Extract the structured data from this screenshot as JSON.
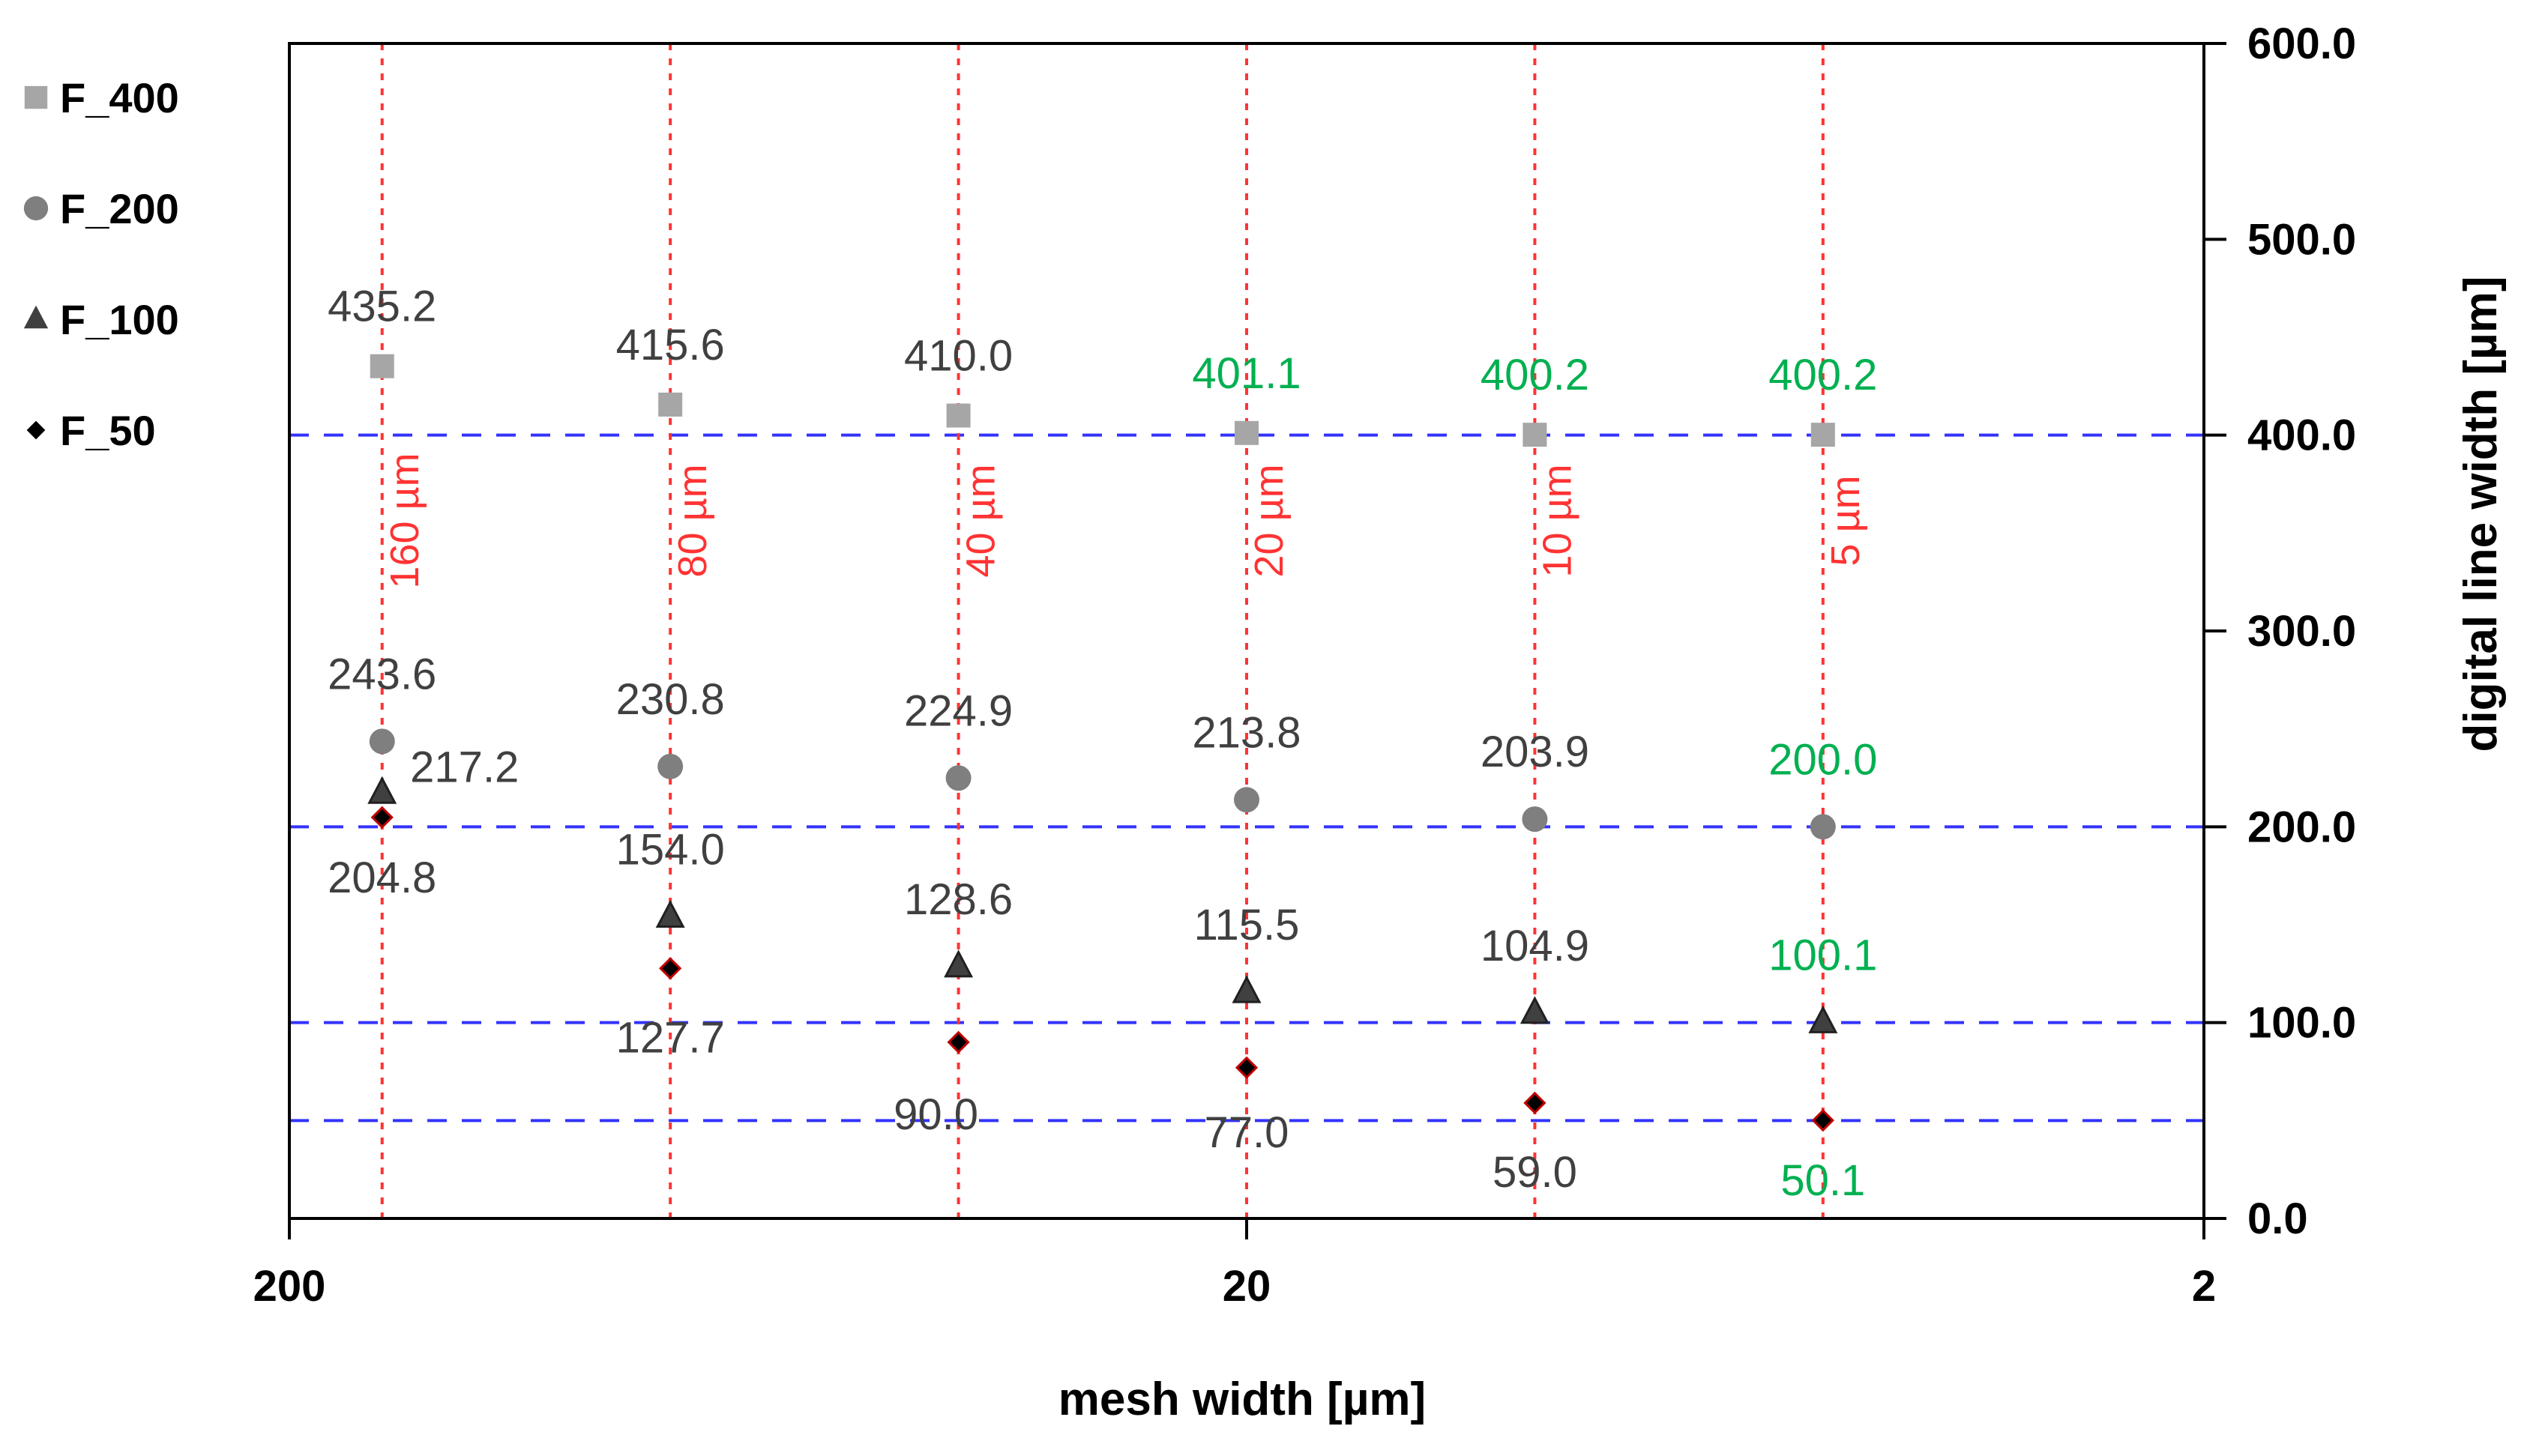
{
  "chart_data": {
    "type": "scatter",
    "title": "",
    "xlabel": "mesh width [µm]",
    "ylabel": "digital line width [µm]",
    "x_scale": "log",
    "x_reversed": true,
    "xlim": [
      200,
      2
    ],
    "x_ticks": [
      {
        "value": 200,
        "label": "200"
      },
      {
        "value": 20,
        "label": "20"
      },
      {
        "value": 2,
        "label": "2"
      }
    ],
    "ylim": [
      0,
      600
    ],
    "y_ticks": [
      {
        "value": 0,
        "label": "0.0"
      },
      {
        "value": 100,
        "label": "100.0"
      },
      {
        "value": 200,
        "label": "200.0"
      },
      {
        "value": 300,
        "label": "300.0"
      },
      {
        "value": 400,
        "label": "400.0"
      },
      {
        "value": 500,
        "label": "500.0"
      },
      {
        "value": 600,
        "label": "600.0"
      }
    ],
    "y_axis_position": "right",
    "legend_position": "left",
    "grid": false,
    "mesh_widths": [
      {
        "value": 160,
        "label": "160 µm"
      },
      {
        "value": 80,
        "label": "80 µm"
      },
      {
        "value": 40,
        "label": "40 µm"
      },
      {
        "value": 20,
        "label": "20 µm"
      },
      {
        "value": 10,
        "label": "10 µm"
      },
      {
        "value": 5,
        "label": "5 µm"
      }
    ],
    "reference_lines": [
      400,
      200,
      100,
      50
    ],
    "colors": {
      "reference_line": "#3333ff",
      "mesh_line": "#ff3333",
      "label_default": "#404040",
      "label_highlight": "#00b050"
    },
    "series": [
      {
        "name": "F_400",
        "marker": "square",
        "color": "#a6a6a6",
        "x": [
          160,
          80,
          40,
          20,
          10,
          5
        ],
        "y": [
          435.2,
          415.6,
          410.0,
          401.1,
          400.2,
          400.2
        ],
        "labels": [
          "435.2",
          "415.6",
          "410.0",
          "401.1",
          "400.2",
          "400.2"
        ],
        "highlight": [
          false,
          false,
          false,
          true,
          true,
          true
        ]
      },
      {
        "name": "F_200",
        "marker": "circle",
        "color": "#7f7f7f",
        "x": [
          160,
          80,
          40,
          20,
          10,
          5
        ],
        "y": [
          243.6,
          230.8,
          224.9,
          213.8,
          203.9,
          200.0
        ],
        "labels": [
          "243.6",
          "230.8",
          "224.9",
          "213.8",
          "203.9",
          "200.0"
        ],
        "highlight": [
          false,
          false,
          false,
          false,
          false,
          true
        ]
      },
      {
        "name": "F_100",
        "marker": "triangle",
        "color": "#404040",
        "x": [
          160,
          80,
          40,
          20,
          10,
          5
        ],
        "y": [
          217.2,
          154.0,
          128.6,
          115.5,
          104.9,
          100.1
        ],
        "labels": [
          "217.2",
          "154.0",
          "128.6",
          "115.5",
          "104.9",
          "100.1"
        ],
        "highlight": [
          false,
          false,
          false,
          false,
          false,
          true
        ]
      },
      {
        "name": "F_50",
        "marker": "diamond",
        "color": "#000000",
        "x": [
          160,
          80,
          40,
          20,
          10,
          5
        ],
        "y": [
          204.8,
          127.7,
          90.0,
          77.0,
          59.0,
          50.1
        ],
        "labels": [
          "204.8",
          "127.7",
          "90.0",
          "77.0",
          "59.0",
          "50.1"
        ],
        "highlight": [
          false,
          false,
          false,
          false,
          false,
          true
        ]
      }
    ]
  }
}
